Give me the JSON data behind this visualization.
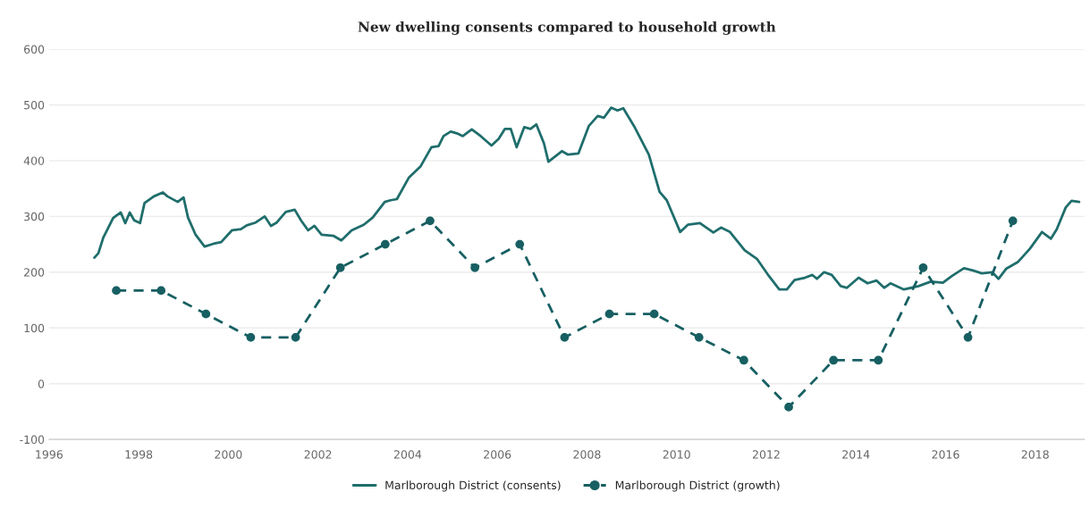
{
  "chart_data": {
    "type": "line",
    "title": "New dwelling consents compared to household growth",
    "xlim": [
      1996,
      2019.1
    ],
    "xticks": [
      1996,
      1998,
      2000,
      2002,
      2004,
      2006,
      2008,
      2010,
      2012,
      2014,
      2016,
      2018
    ],
    "ylim": [
      -100,
      600
    ],
    "yticks": [
      -100,
      0,
      100,
      200,
      300,
      400,
      500,
      600
    ],
    "grid": "y",
    "legend": "bottom",
    "series": [
      {
        "name": "Marlborough District (consents)",
        "color": "#1f6e6c",
        "marker": "none",
        "line_style": "solid",
        "x": [
          1997.01,
          1997.1,
          1997.21,
          1997.43,
          1997.6,
          1997.7,
          1997.8,
          1997.9,
          1998.03,
          1998.13,
          1998.34,
          1998.54,
          1998.64,
          1998.87,
          1999.0,
          1999.1,
          1999.27,
          1999.47,
          1999.67,
          1999.84,
          2000.08,
          2000.28,
          2000.41,
          2000.61,
          2000.81,
          2000.95,
          2001.08,
          2001.28,
          2001.48,
          2001.62,
          2001.78,
          2001.92,
          2002.08,
          2002.35,
          2002.52,
          2002.75,
          2003.02,
          2003.22,
          2003.49,
          2003.62,
          2003.76,
          2004.03,
          2004.29,
          2004.53,
          2004.69,
          2004.8,
          2004.96,
          2005.1,
          2005.23,
          2005.43,
          2005.63,
          2005.87,
          2006.03,
          2006.17,
          2006.3,
          2006.43,
          2006.6,
          2006.74,
          2006.87,
          2007.04,
          2007.14,
          2007.44,
          2007.57,
          2007.81,
          2008.04,
          2008.24,
          2008.38,
          2008.54,
          2008.68,
          2008.81,
          2009.05,
          2009.38,
          2009.62,
          2009.78,
          2010.08,
          2010.25,
          2010.52,
          2010.82,
          2010.99,
          2011.19,
          2011.52,
          2011.79,
          2012.06,
          2012.29,
          2012.46,
          2012.63,
          2012.86,
          2013.03,
          2013.13,
          2013.29,
          2013.46,
          2013.66,
          2013.8,
          2014.06,
          2014.26,
          2014.46,
          2014.63,
          2014.77,
          2015.07,
          2015.4,
          2015.67,
          2015.94,
          2016.14,
          2016.41,
          2016.61,
          2016.81,
          2017.04,
          2017.18,
          2017.35,
          2017.61,
          2017.88,
          2018.15,
          2018.35,
          2018.48,
          2018.68,
          2018.81,
          2018.98
        ],
        "values": [
          226,
          234,
          262,
          297,
          307,
          288,
          307,
          293,
          288,
          324,
          336,
          343,
          336,
          326,
          334,
          298,
          267,
          246,
          251,
          254,
          275,
          277,
          284,
          289,
          300,
          283,
          289,
          308,
          312,
          293,
          275,
          283,
          267,
          265,
          257,
          275,
          285,
          298,
          326,
          329,
          331,
          370,
          390,
          424,
          426,
          444,
          452,
          449,
          444,
          456,
          444,
          427,
          439,
          457,
          457,
          424,
          460,
          457,
          465,
          431,
          398,
          417,
          411,
          413,
          462,
          480,
          477,
          495,
          490,
          494,
          462,
          411,
          344,
          329,
          272,
          285,
          288,
          271,
          280,
          272,
          239,
          224,
          193,
          169,
          169,
          186,
          190,
          195,
          188,
          200,
          195,
          175,
          172,
          190,
          180,
          185,
          172,
          180,
          169,
          175,
          183,
          181,
          193,
          207,
          203,
          198,
          200,
          188,
          206,
          218,
          242,
          272,
          260,
          277,
          316,
          328,
          326
        ]
      },
      {
        "name": "Marlborough District (growth)",
        "color": "#175f62",
        "marker": "circle",
        "line_style": "dashed",
        "x": [
          1997.5,
          1998.5,
          1999.5,
          2000.5,
          2001.5,
          2002.5,
          2003.5,
          2004.5,
          2005.5,
          2006.5,
          2007.5,
          2008.5,
          2009.5,
          2010.5,
          2011.5,
          2012.5,
          2013.5,
          2014.5,
          2015.5,
          2016.5,
          2017.5
        ],
        "values": [
          167,
          167,
          125,
          83,
          83,
          208,
          250,
          292,
          208,
          250,
          83,
          125,
          125,
          83,
          42,
          -42,
          42,
          42,
          208,
          83,
          292
        ]
      }
    ]
  }
}
